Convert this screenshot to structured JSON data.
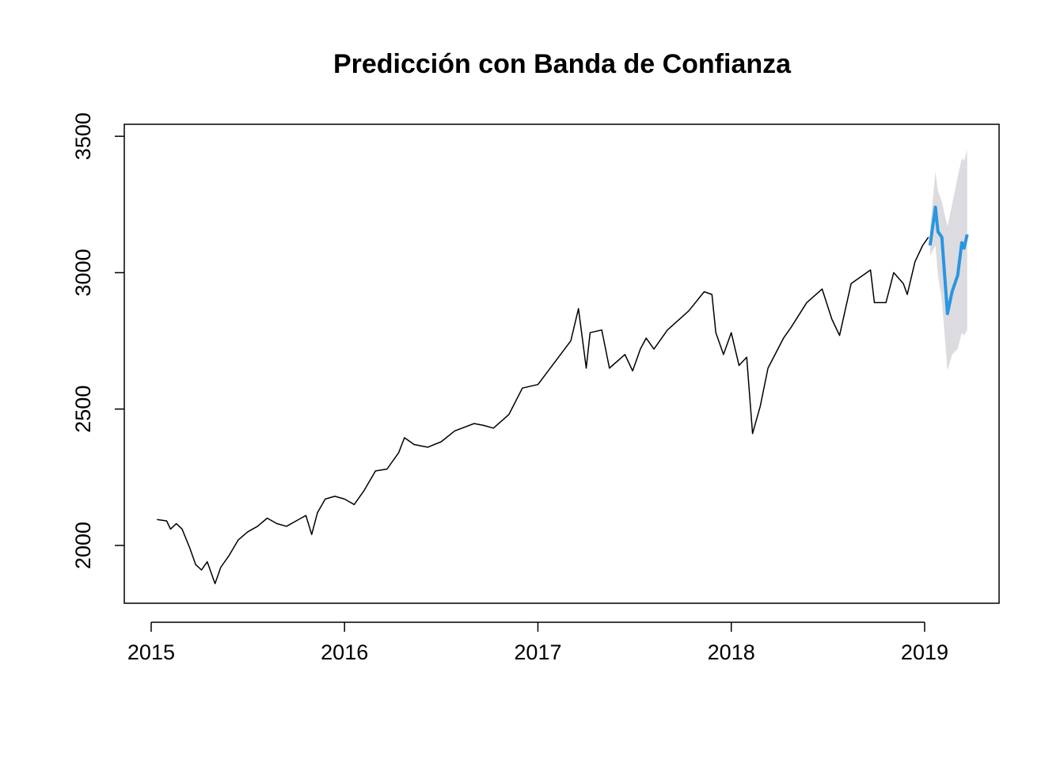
{
  "chart_data": {
    "type": "line",
    "title": "Predicción con Banda de Confianza",
    "xlim": [
      2014.861,
      2019.385
    ],
    "ylim": [
      1788,
      3544
    ],
    "xticks": [
      2015,
      2016,
      2017,
      2018,
      2019
    ],
    "yticks": [
      2000,
      2500,
      3000,
      3500
    ],
    "history": {
      "color": "#000000",
      "x": [
        2015.03,
        2015.08,
        2015.1,
        2015.13,
        2015.16,
        2015.2,
        2015.23,
        2015.26,
        2015.29,
        2015.31,
        2015.33,
        2015.36,
        2015.4,
        2015.45,
        2015.5,
        2015.55,
        2015.6,
        2015.65,
        2015.7,
        2015.75,
        2015.8,
        2015.83,
        2015.86,
        2015.9,
        2015.95,
        2016.0,
        2016.05,
        2016.1,
        2016.16,
        2016.22,
        2016.28,
        2016.31,
        2016.36,
        2016.43,
        2016.5,
        2016.57,
        2016.67,
        2016.72,
        2016.77,
        2016.85,
        2016.92,
        2017.0,
        2017.08,
        2017.17,
        2017.21,
        2017.25,
        2017.27,
        2017.33,
        2017.37,
        2017.45,
        2017.49,
        2017.53,
        2017.56,
        2017.6,
        2017.67,
        2017.78,
        2017.86,
        2017.9,
        2017.92,
        2017.96,
        2018.0,
        2018.04,
        2018.08,
        2018.11,
        2018.15,
        2018.19,
        2018.27,
        2018.31,
        2018.39,
        2018.47,
        2018.52,
        2018.56,
        2018.62,
        2018.68,
        2018.72,
        2018.74,
        2018.8,
        2018.84,
        2018.89,
        2018.91,
        2018.95,
        2018.99,
        2019.02
      ],
      "values": [
        2095,
        2090,
        2060,
        2080,
        2060,
        1990,
        1930,
        1910,
        1940,
        1900,
        1860,
        1920,
        1960,
        2020,
        2050,
        2070,
        2100,
        2080,
        2070,
        2090,
        2110,
        2040,
        2120,
        2170,
        2180,
        2170,
        2150,
        2200,
        2273,
        2280,
        2340,
        2395,
        2370,
        2360,
        2380,
        2420,
        2447,
        2440,
        2430,
        2480,
        2577,
        2590,
        2665,
        2750,
        2868,
        2650,
        2780,
        2790,
        2650,
        2700,
        2640,
        2720,
        2760,
        2720,
        2790,
        2860,
        2930,
        2920,
        2780,
        2700,
        2780,
        2660,
        2690,
        2410,
        2510,
        2650,
        2760,
        2800,
        2890,
        2940,
        2830,
        2770,
        2960,
        2990,
        3010,
        2890,
        2890,
        3000,
        2960,
        2920,
        3040,
        3100,
        3130
      ]
    },
    "forecast": {
      "color": "#2b95e0",
      "band_color": "#dcdce0",
      "x": [
        2019.028,
        2019.056,
        2019.069,
        2019.089,
        2019.118,
        2019.142,
        2019.171,
        2019.192,
        2019.204,
        2019.22
      ],
      "values": [
        3100,
        3240,
        3150,
        3130,
        2850,
        2930,
        2990,
        3110,
        3090,
        3140
      ],
      "lower": [
        3060,
        3100,
        2990,
        2900,
        2640,
        2700,
        2720,
        2780,
        2770,
        2790
      ],
      "upper": [
        3160,
        3370,
        3300,
        3260,
        3170,
        3250,
        3350,
        3420,
        3410,
        3450
      ]
    }
  }
}
